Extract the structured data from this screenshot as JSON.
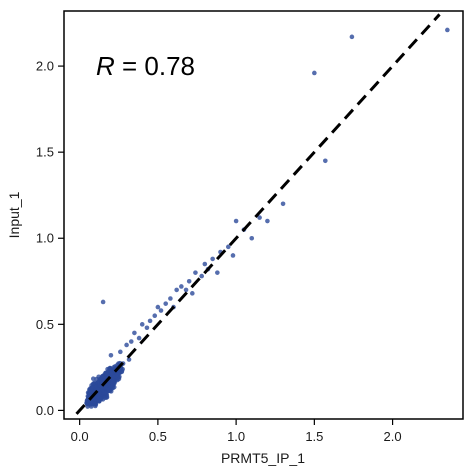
{
  "chart_data": {
    "type": "scatter",
    "title": "",
    "xlabel": "PRMT5_IP_1",
    "ylabel": "Input_1",
    "xlim": [
      -0.1,
      2.45
    ],
    "ylim": [
      -0.05,
      2.32
    ],
    "xticks": [
      "0.0",
      "0.5",
      "1.0",
      "1.5",
      "2.0"
    ],
    "yticks": [
      "0.0",
      "0.5",
      "1.0",
      "1.5",
      "2.0"
    ],
    "grid": false,
    "legend": "none",
    "annotation": {
      "symbol": "R",
      "text": " = 0.78"
    },
    "point_color": "#2c4a9a",
    "line_color": "#000000",
    "reference_line": {
      "x": [
        -0.02,
        2.3
      ],
      "y": [
        -0.02,
        2.3
      ],
      "style": "dashed"
    },
    "cluster": {
      "center_x": 0.15,
      "center_y": 0.14,
      "count": 1800
    },
    "outliers": [
      [
        0.15,
        0.63
      ],
      [
        0.2,
        0.32
      ],
      [
        0.26,
        0.34
      ],
      [
        0.3,
        0.38
      ],
      [
        0.33,
        0.4
      ],
      [
        0.35,
        0.45
      ],
      [
        0.38,
        0.42
      ],
      [
        0.4,
        0.5
      ],
      [
        0.43,
        0.48
      ],
      [
        0.45,
        0.52
      ],
      [
        0.48,
        0.55
      ],
      [
        0.5,
        0.6
      ],
      [
        0.52,
        0.58
      ],
      [
        0.55,
        0.62
      ],
      [
        0.58,
        0.65
      ],
      [
        0.6,
        0.6
      ],
      [
        0.62,
        0.7
      ],
      [
        0.65,
        0.72
      ],
      [
        0.68,
        0.7
      ],
      [
        0.7,
        0.75
      ],
      [
        0.72,
        0.68
      ],
      [
        0.74,
        0.8
      ],
      [
        0.78,
        0.78
      ],
      [
        0.8,
        0.85
      ],
      [
        0.82,
        0.82
      ],
      [
        0.85,
        0.88
      ],
      [
        0.88,
        0.8
      ],
      [
        0.9,
        0.92
      ],
      [
        0.95,
        0.95
      ],
      [
        0.98,
        0.9
      ],
      [
        1.0,
        1.1
      ],
      [
        1.05,
        1.05
      ],
      [
        1.1,
        1.0
      ],
      [
        1.15,
        1.12
      ],
      [
        1.2,
        1.1
      ],
      [
        1.3,
        1.2
      ],
      [
        1.5,
        1.96
      ],
      [
        1.57,
        1.45
      ],
      [
        1.74,
        2.17
      ],
      [
        2.35,
        2.21
      ]
    ]
  }
}
